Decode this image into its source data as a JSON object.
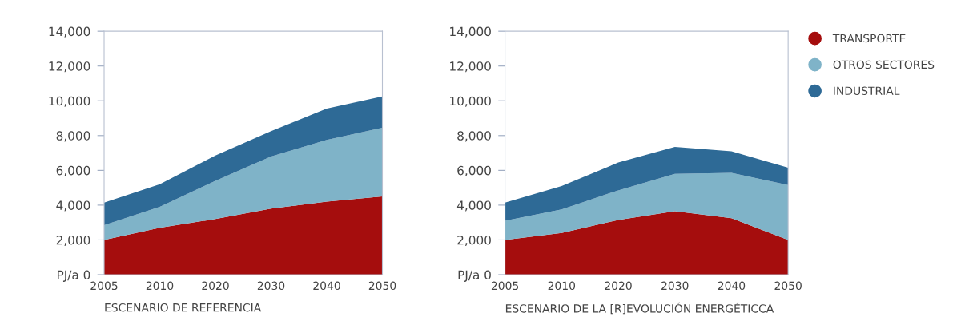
{
  "chart_data": [
    {
      "type": "area",
      "stacked": true,
      "xlabel": "ESCENARIO DE REFERENCIA",
      "categories": [
        "2005",
        "2010",
        "2020",
        "2030",
        "2040",
        "2050"
      ],
      "ylim": [
        0,
        14000
      ],
      "yticks": [
        {
          "value": 0,
          "label": "PJ/a 0"
        },
        {
          "value": 2000,
          "label": "2,000"
        },
        {
          "value": 4000,
          "label": "4,000"
        },
        {
          "value": 6000,
          "label": "6,000"
        },
        {
          "value": 8000,
          "label": "8,000"
        },
        {
          "value": 10000,
          "label": "10,000"
        },
        {
          "value": 12000,
          "label": "12,000"
        },
        {
          "value": 14000,
          "label": "14,000"
        }
      ],
      "grid": false,
      "legend": false,
      "series": [
        {
          "color": "#a50d0d",
          "values": [
            2000,
            2700,
            3200,
            3800,
            4200,
            4500
          ]
        },
        {
          "color": "#7fb3c8",
          "values": [
            850,
            1200,
            2200,
            3000,
            3550,
            3950
          ]
        },
        {
          "color": "#2e6a96",
          "values": [
            1300,
            1300,
            1450,
            1450,
            1800,
            1800
          ]
        }
      ]
    },
    {
      "type": "area",
      "stacked": true,
      "xlabel": "ESCENARIO DE LA [R]EVOLUCIÓN ENERGÉTICCA",
      "categories": [
        "2005",
        "2010",
        "2020",
        "2030",
        "2040",
        "2050"
      ],
      "ylim": [
        0,
        14000
      ],
      "yticks": [
        {
          "value": 0,
          "label": "PJ/a 0"
        },
        {
          "value": 2000,
          "label": "2,000"
        },
        {
          "value": 4000,
          "label": "4,000"
        },
        {
          "value": 6000,
          "label": "6,000"
        },
        {
          "value": 8000,
          "label": "8,000"
        },
        {
          "value": 10000,
          "label": "10,000"
        },
        {
          "value": 12000,
          "label": "12,000"
        },
        {
          "value": 14000,
          "label": "14,000"
        }
      ],
      "grid": false,
      "legend": "right",
      "series": [
        {
          "name": "TRANSPORTE",
          "color": "#a50d0d",
          "values": [
            2000,
            2400,
            3150,
            3650,
            3250,
            2000
          ]
        },
        {
          "name": "OTROS SECTORES",
          "color": "#7fb3c8",
          "values": [
            1100,
            1350,
            1700,
            2150,
            2600,
            3150
          ]
        },
        {
          "name": "INDUSTRIAL",
          "color": "#2e6a96",
          "values": [
            1050,
            1350,
            1600,
            1550,
            1250,
            1000
          ]
        }
      ]
    }
  ]
}
